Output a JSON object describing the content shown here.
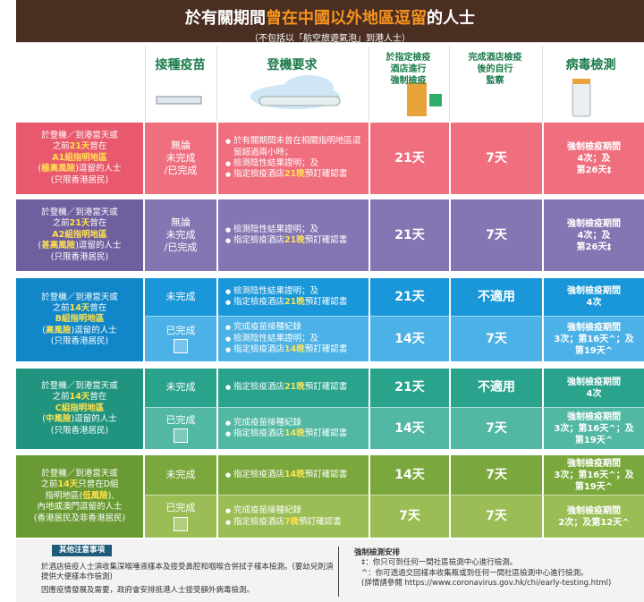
{
  "header": {
    "title": [
      "於有關期間",
      "曾在中國以外地區逗留",
      "的人士"
    ],
    "subtitle": "（不包括以「航空旅遊氣泡」到港人士）"
  },
  "columns": [
    [
      "接種疫苗"
    ],
    [
      "登機要求"
    ],
    [
      "於指定檢疫",
      "酒店進行",
      "強制檢疫"
    ],
    [
      "完成酒店檢疫",
      "後的自行",
      "監察"
    ],
    [
      "病毒檢測"
    ]
  ],
  "groups": [
    {
      "label": [
        [
          "於登機／到港當天或"
        ],
        [
          "之前",
          "21天",
          "曾在"
        ],
        [
          "",
          "A1組指明地區"
        ],
        [
          "(",
          "極高風險",
          ")逗留的人士"
        ],
        [
          "(只限香港居民)"
        ]
      ],
      "rows": [
        {
          "vaccine": [
            "無論",
            "未完成",
            "/已完成"
          ],
          "requirements": [
            [
              "於有關期間未曾在相關指明地區逗留超過兩小時；"
            ],
            [
              "檢測陰性結果證明；及"
            ],
            [
              "指定檢疫酒店",
              "21晚",
              "預訂確認書"
            ]
          ],
          "quarantine": "21天",
          "monitoring": "7天",
          "testing": [
            "強制檢疫期間",
            "4次；及",
            "第26天‡"
          ]
        }
      ]
    },
    {
      "label": [
        [
          "於登機／到港當天或"
        ],
        [
          "之前",
          "21天",
          "曾在"
        ],
        [
          "",
          "A2組指明地區"
        ],
        [
          "(",
          "甚高風險",
          ")逗留的人士"
        ],
        [
          "(只限香港居民)"
        ]
      ],
      "rows": [
        {
          "vaccine": [
            "無論",
            "未完成",
            "/已完成"
          ],
          "requirements": [
            [
              "檢測陰性結果證明；及"
            ],
            [
              "指定檢疫酒店",
              "21晚",
              "預訂確認書"
            ]
          ],
          "quarantine": "21天",
          "monitoring": "7天",
          "testing": [
            "強制檢疫期間",
            "4次；及",
            "第26天‡"
          ]
        }
      ]
    },
    {
      "label": [
        [
          "於登機／到港當天或"
        ],
        [
          "之前",
          "14天",
          "曾在"
        ],
        [
          "",
          "B組指明地區"
        ],
        [
          "(",
          "高風險",
          ")逗留的人士"
        ],
        [
          "(只限香港居民)"
        ]
      ],
      "rows": [
        {
          "vaccine": [
            "未完成"
          ],
          "requirements": [
            [
              "檢測陰性結果證明；及"
            ],
            [
              "指定檢疫酒店",
              "21晚",
              "預訂確認書"
            ]
          ],
          "quarantine": "21天",
          "monitoring": "不適用",
          "testing": [
            "強制檢疫期間",
            "4次"
          ]
        },
        {
          "vaccine": [
            "已完成"
          ],
          "requirements": [
            [
              "完成疫苗接種紀錄"
            ],
            [
              "檢測陰性結果證明；及"
            ],
            [
              "指定檢疫酒店",
              "14晚",
              "預訂確認書"
            ]
          ],
          "quarantine": "14天",
          "monitoring": "7天",
          "testing": [
            "強制檢疫期間",
            "3次；第16天^；及",
            "第19天^"
          ]
        }
      ]
    },
    {
      "label": [
        [
          "於登機／到港當天或"
        ],
        [
          "之前",
          "14天",
          "曾在"
        ],
        [
          "",
          "C組指明地區"
        ],
        [
          "(",
          "中風險",
          ")逗留的人士"
        ],
        [
          "(只限香港居民)"
        ]
      ],
      "rows": [
        {
          "vaccine": [
            "未完成"
          ],
          "requirements": [
            [
              "指定檢疫酒店",
              "21晚",
              "預訂確認書"
            ]
          ],
          "quarantine": "21天",
          "monitoring": "不適用",
          "testing": [
            "強制檢疫期間",
            "4次"
          ]
        },
        {
          "vaccine": [
            "已完成"
          ],
          "requirements": [
            [
              "完成疫苗接種紀錄"
            ],
            [
              "指定檢疫酒店",
              "14晚",
              "預訂確認書"
            ]
          ],
          "quarantine": "14天",
          "monitoring": "7天",
          "testing": [
            "強制檢疫期間",
            "3次；第16天^；及",
            "第19天^"
          ]
        }
      ]
    },
    {
      "label": [
        [
          "於登機／到港當天或"
        ],
        [
          "之前",
          "14天",
          "只曾在D組"
        ],
        [
          "指明地區(",
          "低風險",
          "),"
        ],
        [
          "內地或澳門逗留的人士"
        ],
        [
          "(香港居民及非香港居民)"
        ]
      ],
      "rows": [
        {
          "vaccine": [
            "未完成"
          ],
          "requirements": [
            [
              "指定檢疫酒店",
              "14晚",
              "預訂確認書"
            ]
          ],
          "quarantine": "14天",
          "monitoring": "7天",
          "testing": [
            "強制檢疫期間",
            "3次；第16天^；及",
            "第19天^"
          ]
        },
        {
          "vaccine": [
            "已完成"
          ],
          "requirements": [
            [
              "完成疫苗接種紀錄"
            ],
            [
              "指定檢疫酒店",
              "7晚",
              "預訂確認書"
            ]
          ],
          "quarantine": "7天",
          "monitoring": "7天",
          "testing": [
            "強制檢疫期間",
            "2次；及第12天^"
          ]
        }
      ]
    }
  ],
  "notes": {
    "title": "其他注意事項",
    "items": [
      "於酒店檢疫人士須收集深喉唾液樣本及接受鼻腔和咽喉合併拭子樣本檢測。(要幼兒則須提供大便樣本作檢測)",
      "因應疫情發展及需要，政府會安排抵港人士接受額外病毒檢測。"
    ],
    "testing_title": "強制檢測安排",
    "testing_items": [
      "‡：你只可到任何一間社區檢測中心進行檢測。",
      "^：你可透過交回樣本收集瓶或到任何一間社區檢測中心進行檢測。",
      "(詳情請參閱 https://www.coronavirus.gov.hk/chi/early-testing.html)"
    ]
  }
}
